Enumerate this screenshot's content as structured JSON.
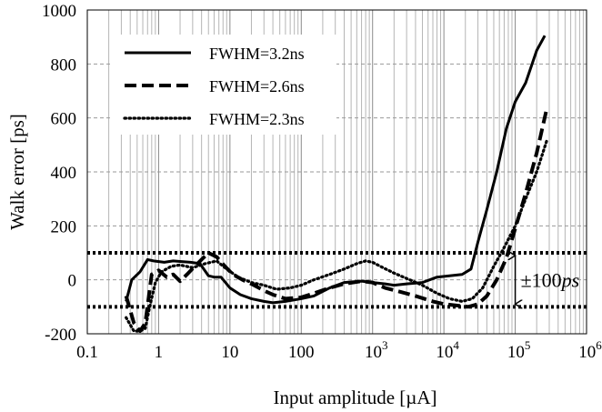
{
  "chart_data": {
    "type": "line",
    "title": "",
    "xlabel": "Input amplitude [µA]",
    "ylabel": "Walk error [ps]",
    "xscale": "log",
    "xlim": [
      0.1,
      1000000
    ],
    "ylim": [
      -200,
      1000
    ],
    "grid": true,
    "legend_position": "top-left",
    "x_ticks": [
      {
        "value": 0.1,
        "label": "0.1",
        "base": "",
        "exp": ""
      },
      {
        "value": 1,
        "label": "1",
        "base": "",
        "exp": ""
      },
      {
        "value": 10,
        "label": "10",
        "base": "",
        "exp": ""
      },
      {
        "value": 100,
        "label": "100",
        "base": "",
        "exp": ""
      },
      {
        "value": 1000,
        "label": "",
        "base": "10",
        "exp": "3"
      },
      {
        "value": 10000,
        "label": "",
        "base": "10",
        "exp": "4"
      },
      {
        "value": 100000,
        "label": "",
        "base": "10",
        "exp": "5"
      },
      {
        "value": 1000000,
        "label": "",
        "base": "10",
        "exp": "6"
      }
    ],
    "y_ticks": [
      {
        "value": -200,
        "label": "-200"
      },
      {
        "value": 0,
        "label": "0"
      },
      {
        "value": 200,
        "label": "200"
      },
      {
        "value": 400,
        "label": "400"
      },
      {
        "value": 600,
        "label": "600"
      },
      {
        "value": 800,
        "label": "800"
      },
      {
        "value": 1000,
        "label": "1000"
      }
    ],
    "series": [
      {
        "name": "FWHM=3.2ns",
        "style": "solid",
        "x": [
          0.35,
          0.42,
          0.55,
          0.7,
          0.85,
          1.2,
          1.6,
          2.0,
          2.8,
          3.8,
          5,
          6,
          7.5,
          10,
          14,
          20,
          30,
          40,
          60,
          100,
          150,
          250,
          400,
          700,
          1000,
          1500,
          2000,
          3000,
          5000,
          8000,
          12000,
          18000,
          24000,
          30000,
          40000,
          55000,
          75000,
          100000,
          140000,
          200000,
          260000
        ],
        "y": [
          -80,
          0,
          30,
          75,
          70,
          65,
          70,
          68,
          65,
          60,
          15,
          10,
          10,
          -30,
          -55,
          -70,
          -80,
          -85,
          -80,
          -70,
          -60,
          -30,
          -10,
          -5,
          -10,
          -15,
          -20,
          -15,
          -10,
          10,
          15,
          20,
          40,
          140,
          260,
          400,
          560,
          660,
          730,
          850,
          905
        ]
      },
      {
        "name": "FWHM=2.6ns",
        "style": "dashed",
        "x": [
          0.35,
          0.45,
          0.55,
          0.65,
          0.8,
          1.0,
          1.3,
          1.6,
          2.0,
          2.5,
          3.5,
          5.0,
          6.5,
          8.5,
          11,
          15,
          20,
          30,
          40,
          60,
          100,
          150,
          250,
          400,
          700,
          1000,
          1500,
          2500,
          4000,
          7000,
          10000,
          15000,
          22000,
          30000,
          40000,
          55000,
          75000,
          100000,
          140000,
          200000,
          280000
        ],
        "y": [
          -60,
          -160,
          -190,
          -160,
          20,
          35,
          10,
          20,
          -5,
          20,
          60,
          100,
          85,
          50,
          20,
          0,
          -15,
          -40,
          -55,
          -70,
          -65,
          -50,
          -30,
          -15,
          -5,
          -10,
          -30,
          -45,
          -60,
          -80,
          -90,
          -95,
          -100,
          -90,
          -60,
          0,
          80,
          190,
          320,
          470,
          640
        ]
      },
      {
        "name": "FWHM=2.3ns",
        "style": "dotted",
        "x": [
          0.35,
          0.45,
          0.55,
          0.65,
          0.75,
          0.9,
          1.1,
          1.5,
          2.0,
          3.0,
          4.5,
          6.5,
          9,
          13,
          20,
          30,
          45,
          70,
          100,
          150,
          250,
          400,
          600,
          800,
          1000,
          1400,
          2000,
          3000,
          5000,
          8000,
          12000,
          18000,
          25000,
          35000,
          50000,
          70000,
          100000,
          140000,
          200000,
          280000
        ],
        "y": [
          -140,
          -190,
          -190,
          -180,
          -100,
          -10,
          30,
          50,
          55,
          45,
          60,
          70,
          40,
          10,
          -10,
          -20,
          -35,
          -30,
          -20,
          0,
          20,
          40,
          60,
          70,
          65,
          45,
          25,
          5,
          -20,
          -50,
          -70,
          -80,
          -70,
          -30,
          50,
          120,
          200,
          300,
          400,
          520
        ]
      }
    ],
    "reference_lines": [
      {
        "y": 100,
        "style": "dotted-thick"
      },
      {
        "y": -100,
        "style": "dotted-thick"
      }
    ],
    "annotation": {
      "text_prefix": "±100",
      "text_unit": "ps",
      "x": 100000,
      "y_from": -100,
      "y_to": 100
    }
  }
}
